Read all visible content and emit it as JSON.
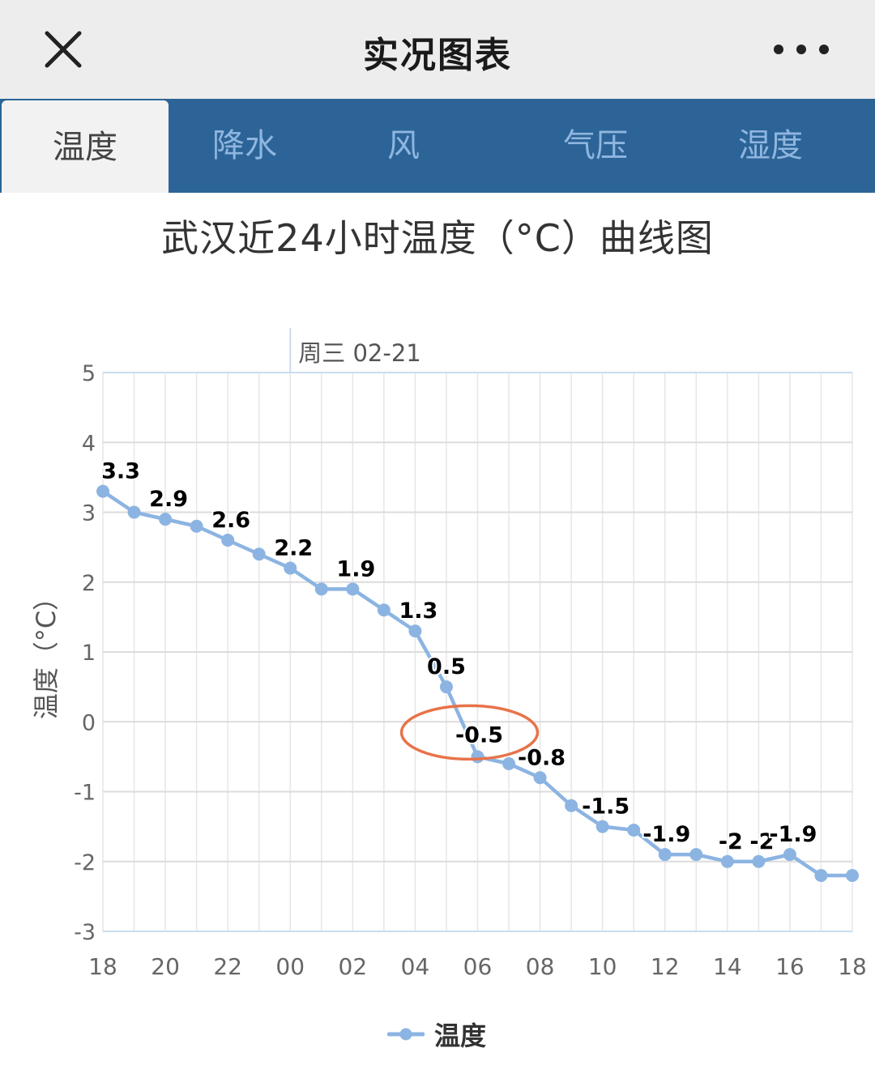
{
  "header": {
    "title": "实况图表",
    "close_icon": "close-icon",
    "more_icon": "more-horizontal-icon"
  },
  "tabs": [
    {
      "label": "温度",
      "active": true
    },
    {
      "label": "降水",
      "active": false
    },
    {
      "label": "风",
      "active": false
    },
    {
      "label": "气压",
      "active": false
    },
    {
      "label": "湿度",
      "active": false
    }
  ],
  "colors": {
    "accent": "#2c6497",
    "series": "#8cb4e2",
    "highlight_circle": "#e8734a"
  },
  "chart_data": {
    "type": "line",
    "title": "武汉近24小时温度（°C）曲线图",
    "ylabel": "温度（°C）",
    "xlabel": "",
    "ylim": [
      -3,
      5
    ],
    "yticks": [
      "5",
      "4",
      "3",
      "2",
      "1",
      "0",
      "-1",
      "-2",
      "-3"
    ],
    "x_tick_labels": [
      "18",
      "20",
      "22",
      "00",
      "02",
      "04",
      "06",
      "08",
      "10",
      "12",
      "14",
      "16",
      "18"
    ],
    "day_marker": "周三 02-21",
    "x": [
      "18",
      "19",
      "20",
      "21",
      "22",
      "23",
      "00",
      "01",
      "02",
      "03",
      "04",
      "05",
      "06",
      "07",
      "08",
      "09",
      "10",
      "11",
      "12",
      "13",
      "14",
      "15",
      "16",
      "17",
      "18"
    ],
    "series": [
      {
        "name": "温度",
        "values": [
          3.3,
          3.0,
          2.9,
          2.8,
          2.6,
          2.4,
          2.2,
          1.9,
          1.9,
          1.6,
          1.3,
          0.5,
          -0.5,
          -0.6,
          -0.8,
          -1.2,
          -1.5,
          -1.55,
          -1.9,
          -1.9,
          -2.0,
          -2.0,
          -1.9,
          -2.2,
          -2.2
        ]
      }
    ],
    "data_labels": [
      {
        "index": 0,
        "text": "3.3"
      },
      {
        "index": 2,
        "text": "2.9"
      },
      {
        "index": 4,
        "text": "2.6"
      },
      {
        "index": 6,
        "text": "2.2"
      },
      {
        "index": 8,
        "text": "1.9"
      },
      {
        "index": 10,
        "text": "1.3"
      },
      {
        "index": 11,
        "text": "0.5"
      },
      {
        "index": 12,
        "text": "-0.5"
      },
      {
        "index": 14,
        "text": "-0.8"
      },
      {
        "index": 16,
        "text": "-1.5"
      },
      {
        "index": 18,
        "text": "-1.9"
      },
      {
        "index": 20,
        "text": "-2"
      },
      {
        "index": 21,
        "text": "-2"
      },
      {
        "index": 22,
        "text": "-1.9"
      }
    ],
    "grid": true,
    "legend_position": "bottom-center",
    "highlighted_point_index": 12
  }
}
